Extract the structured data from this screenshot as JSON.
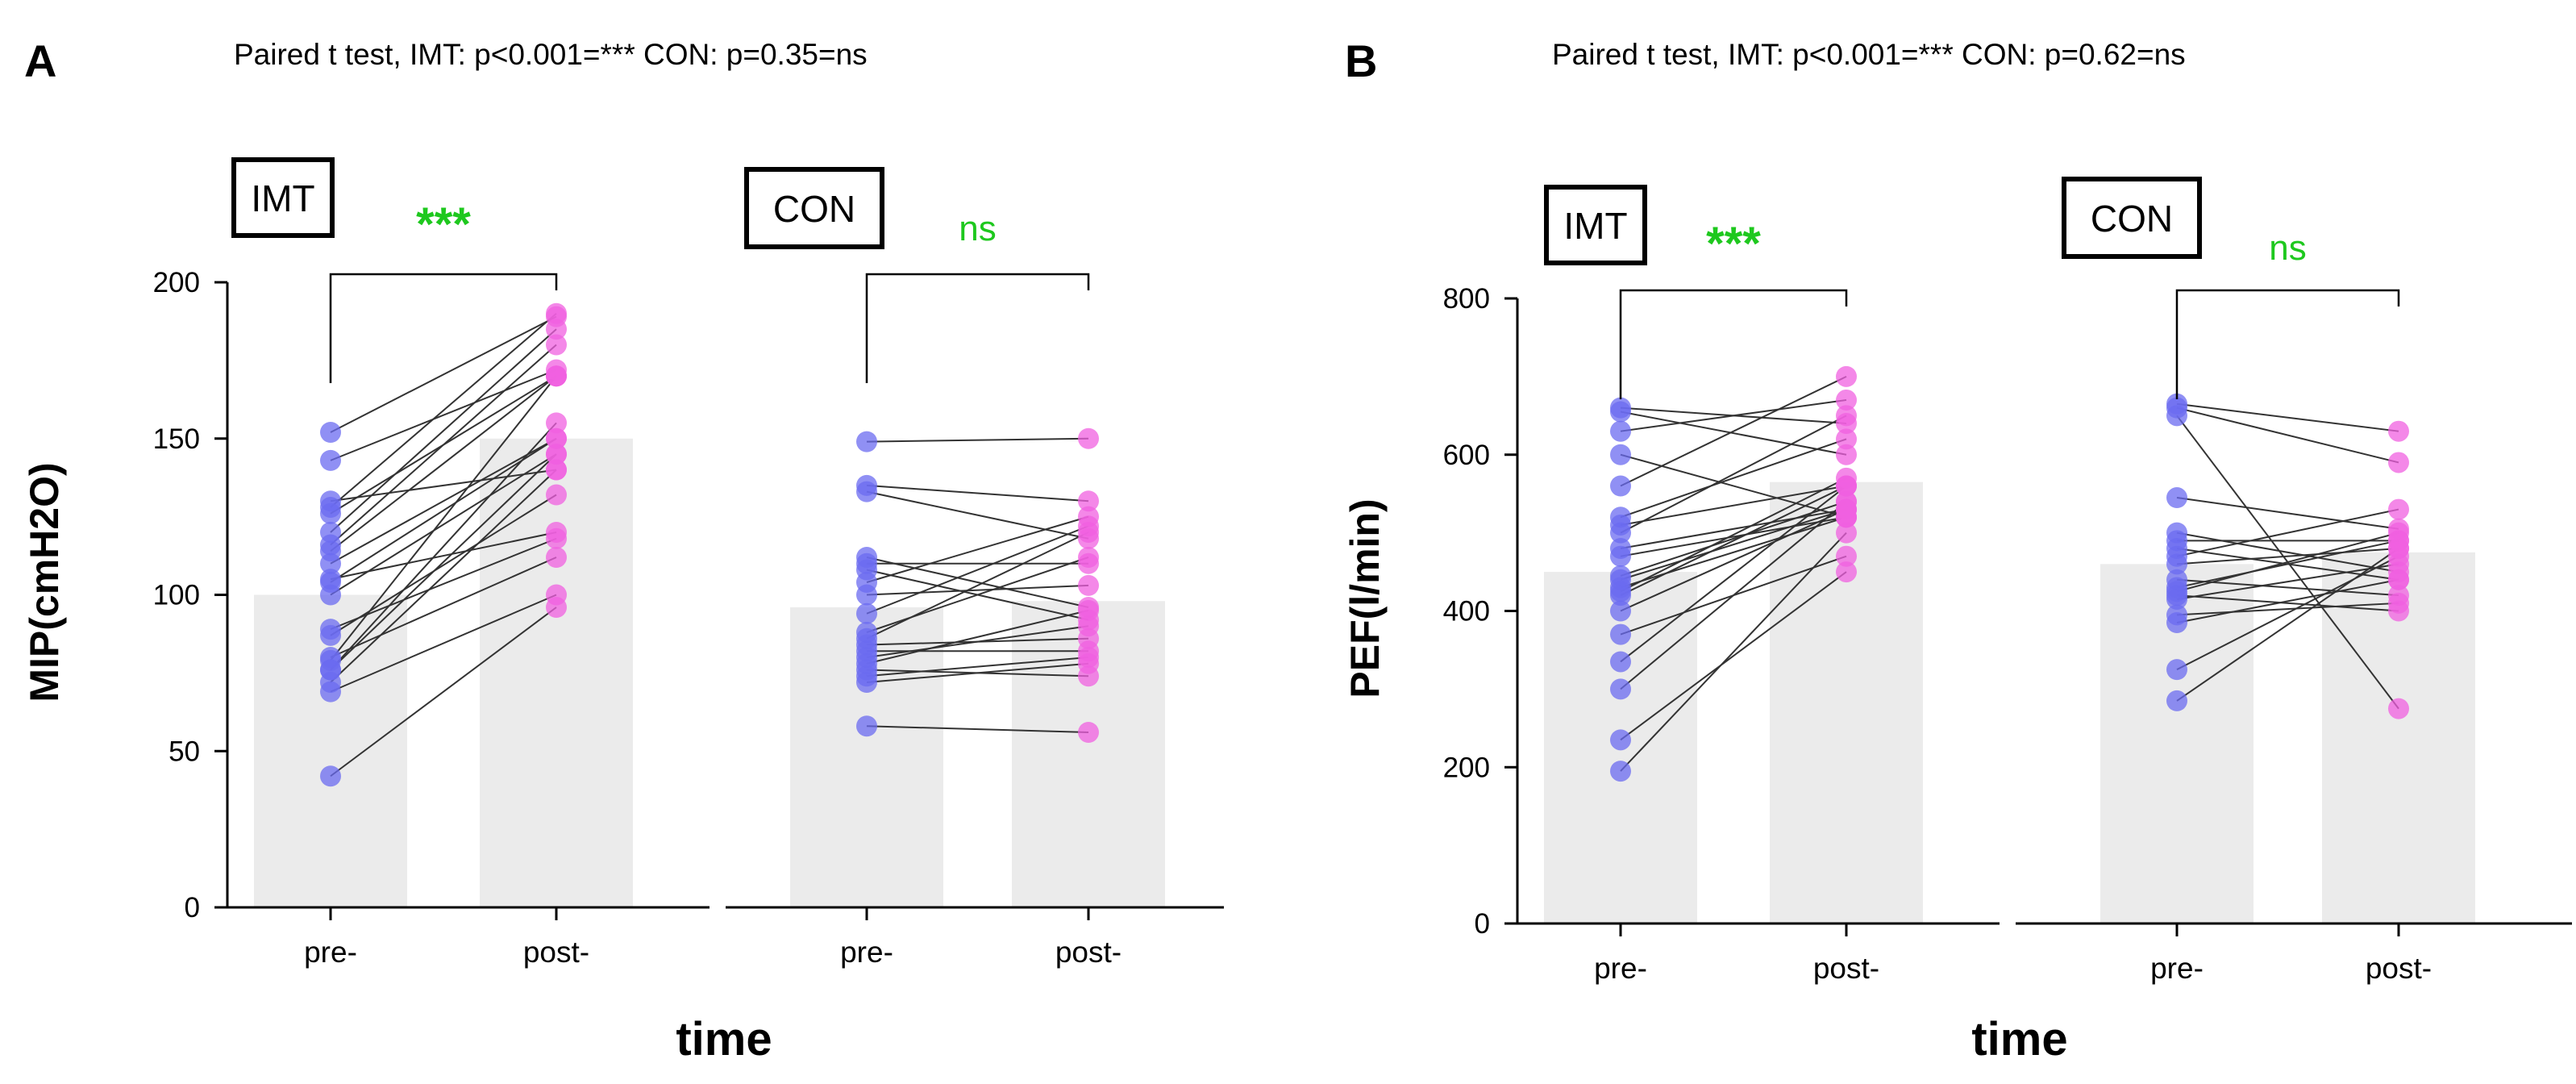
{
  "colors": {
    "pre": "#6b6bf0",
    "post": "#f060e0",
    "bar": "#ebebeb",
    "line": "#333333",
    "significance": "#1ec81e"
  },
  "chart_data": [
    {
      "type": "bar",
      "panel": "A",
      "title": "Paired t test, IMT: p<0.001=*** CON: p=0.35=ns",
      "xlabel": "time",
      "ylabel": "MIP(cmH2O)",
      "ylim": [
        0,
        200
      ],
      "yticks": [
        0,
        50,
        100,
        150,
        200
      ],
      "categories": [
        "pre-",
        "post-"
      ],
      "groups": [
        {
          "name": "IMT",
          "significance": "***",
          "bar_means": [
            100,
            150
          ],
          "pairs": [
            [
              42,
              96
            ],
            [
              69,
              100
            ],
            [
              72,
              140
            ],
            [
              76,
              145
            ],
            [
              76,
              155
            ],
            [
              79,
              170
            ],
            [
              80,
              112
            ],
            [
              87,
              132
            ],
            [
              89,
              118
            ],
            [
              100,
              145
            ],
            [
              104,
              150
            ],
            [
              105,
              120
            ],
            [
              110,
              150
            ],
            [
              114,
              170
            ],
            [
              116,
              180
            ],
            [
              120,
              185
            ],
            [
              126,
              170
            ],
            [
              128,
              190
            ],
            [
              130,
              140
            ],
            [
              143,
              172
            ],
            [
              152,
              189
            ]
          ]
        },
        {
          "name": "CON",
          "significance": "ns",
          "bar_means": [
            96,
            98
          ],
          "pairs": [
            [
              58,
              56
            ],
            [
              72,
              78
            ],
            [
              74,
              80
            ],
            [
              76,
              74
            ],
            [
              78,
              95
            ],
            [
              80,
              90
            ],
            [
              82,
              82
            ],
            [
              84,
              86
            ],
            [
              86,
              120
            ],
            [
              88,
              112
            ],
            [
              94,
              122
            ],
            [
              100,
              103
            ],
            [
              104,
              125
            ],
            [
              108,
              92
            ],
            [
              110,
              110
            ],
            [
              112,
              96
            ],
            [
              133,
              118
            ],
            [
              135,
              130
            ],
            [
              149,
              150
            ]
          ]
        }
      ]
    },
    {
      "type": "bar",
      "panel": "B",
      "title": "Paired t test, IMT: p<0.001=*** CON: p=0.62=ns",
      "xlabel": "time",
      "ylabel": "PEF(l/min)",
      "ylim": [
        0,
        800
      ],
      "yticks": [
        0,
        200,
        400,
        600,
        800
      ],
      "categories": [
        "pre-",
        "post-"
      ],
      "groups": [
        {
          "name": "IMT",
          "significance": "***",
          "bar_means": [
            450,
            565
          ],
          "pairs": [
            [
              195,
              500
            ],
            [
              235,
              450
            ],
            [
              300,
              540
            ],
            [
              335,
              560
            ],
            [
              370,
              470
            ],
            [
              400,
              530
            ],
            [
              420,
              560
            ],
            [
              425,
              570
            ],
            [
              430,
              520
            ],
            [
              440,
              530
            ],
            [
              445,
              540
            ],
            [
              470,
              520
            ],
            [
              480,
              530
            ],
            [
              500,
              650
            ],
            [
              510,
              560
            ],
            [
              520,
              620
            ],
            [
              560,
              700
            ],
            [
              600,
              520
            ],
            [
              630,
              670
            ],
            [
              655,
              600
            ],
            [
              660,
              640
            ]
          ]
        },
        {
          "name": "CON",
          "significance": "ns",
          "bar_means": [
            460,
            475
          ],
          "pairs": [
            [
              285,
              480
            ],
            [
              325,
              470
            ],
            [
              385,
              440
            ],
            [
              395,
              410
            ],
            [
              415,
              460
            ],
            [
              420,
              400
            ],
            [
              425,
              500
            ],
            [
              430,
              490
            ],
            [
              440,
              420
            ],
            [
              460,
              480
            ],
            [
              470,
              530
            ],
            [
              480,
              440
            ],
            [
              490,
              490
            ],
            [
              500,
              450
            ],
            [
              545,
              505
            ],
            [
              650,
              275
            ],
            [
              660,
              590
            ],
            [
              665,
              630
            ]
          ]
        }
      ]
    }
  ]
}
